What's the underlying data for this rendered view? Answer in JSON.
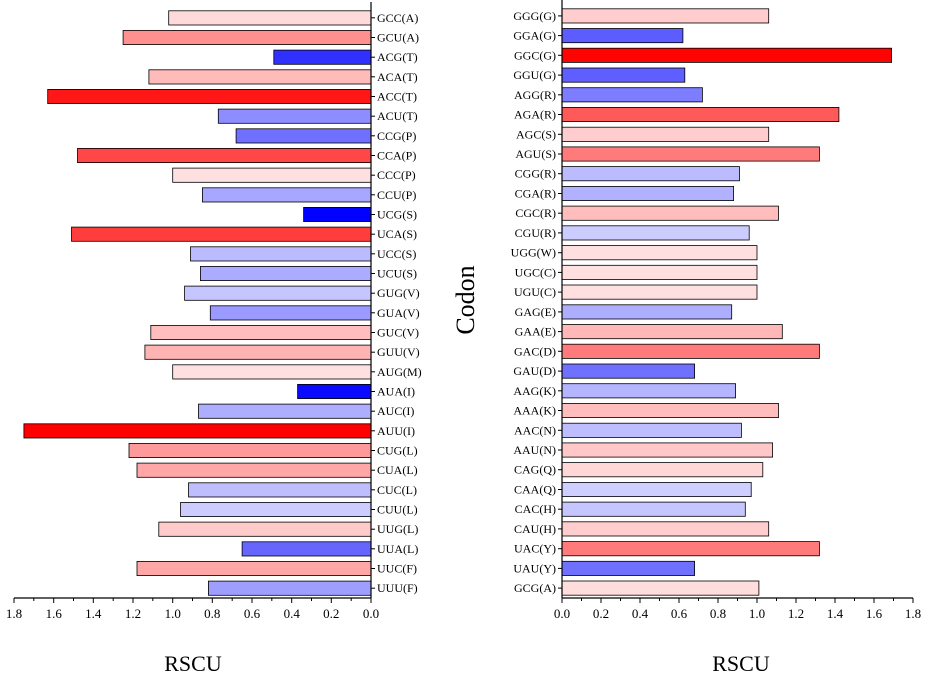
{
  "chart_data": [
    {
      "type": "bar",
      "orientation": "horizontal",
      "x_direction": "reversed",
      "xlabel": "RSCU",
      "xlim": [
        0,
        1.8
      ],
      "xticks": [
        "1.8",
        "1.6",
        "1.4",
        "1.2",
        "1.0",
        "0.8",
        "0.6",
        "0.4",
        "0.2",
        "0.0"
      ],
      "categories": [
        "GCC(A)",
        "GCU(A)",
        "ACG(T)",
        "ACA(T)",
        "ACC(T)",
        "ACU(T)",
        "CCG(P)",
        "CCA(P)",
        "CCC(P)",
        "CCU(P)",
        "UCG(S)",
        "UCA(S)",
        "UCC(S)",
        "UCU(S)",
        "GUG(V)",
        "GUA(V)",
        "GUC(V)",
        "GUU(V)",
        "AUG(M)",
        "AUA(I)",
        "AUC(I)",
        "AUU(I)",
        "CUG(L)",
        "CUA(L)",
        "CUC(L)",
        "CUU(L)",
        "UUG(L)",
        "UUA(L)",
        "UUC(F)",
        "UUU(F)"
      ],
      "values": [
        1.02,
        1.25,
        0.49,
        1.12,
        1.63,
        0.77,
        0.68,
        1.48,
        1.0,
        0.85,
        0.34,
        1.51,
        0.91,
        0.86,
        0.94,
        0.81,
        1.11,
        1.14,
        1.0,
        0.37,
        0.87,
        1.75,
        1.22,
        1.18,
        0.92,
        0.96,
        1.07,
        0.65,
        1.18,
        0.82
      ]
    },
    {
      "type": "bar",
      "orientation": "horizontal",
      "x_direction": "normal",
      "xlabel": "RSCU",
      "ylabel": "Codon",
      "xlim": [
        0,
        1.8
      ],
      "xticks": [
        "0.0",
        "0.2",
        "0.4",
        "0.6",
        "0.8",
        "1.0",
        "1.2",
        "1.4",
        "1.6",
        "1.8"
      ],
      "categories": [
        "GGG(G)",
        "GGA(G)",
        "GGC(G)",
        "GGU(G)",
        "AGG(R)",
        "AGA(R)",
        "AGC(S)",
        "AGU(S)",
        "CGG(R)",
        "CGA(R)",
        "CGC(R)",
        "CGU(R)",
        "UGG(W)",
        "UGC(C)",
        "UGU(C)",
        "GAG(E)",
        "GAA(E)",
        "GAC(D)",
        "GAU(D)",
        "AAG(K)",
        "AAA(K)",
        "AAC(N)",
        "AAU(N)",
        "CAG(Q)",
        "CAA(Q)",
        "CAC(H)",
        "CAU(H)",
        "UAC(Y)",
        "UAU(Y)",
        "GCG(A)"
      ],
      "values": [
        1.06,
        0.62,
        1.69,
        0.63,
        0.72,
        1.42,
        1.06,
        1.32,
        0.91,
        0.88,
        1.11,
        0.96,
        1.0,
        1.0,
        1.0,
        0.87,
        1.13,
        1.32,
        0.68,
        0.89,
        1.11,
        0.92,
        1.08,
        1.03,
        0.97,
        0.94,
        1.06,
        1.32,
        0.68,
        1.01
      ]
    }
  ],
  "colors": {
    "low": "#0000ff",
    "mid": "#ffffff",
    "high": "#ff0000",
    "stroke": "#000000"
  }
}
